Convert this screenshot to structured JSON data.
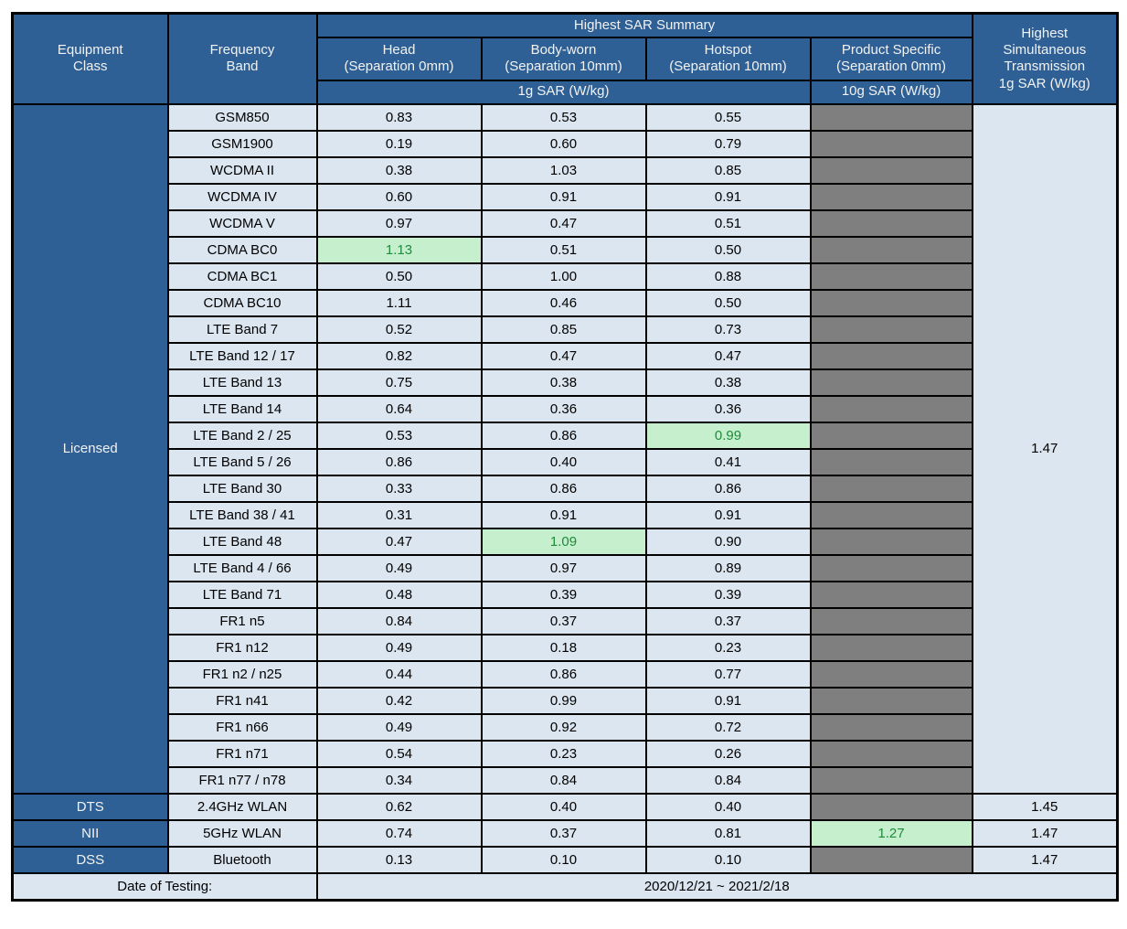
{
  "colors": {
    "header_blue": "#2E6095",
    "cell_light_blue": "#DCE6F1",
    "blank_grey": "#7F7F7F",
    "highlight_green_bg": "#C6EFCE",
    "highlight_green_text": "#1F8B3C",
    "border": "#000000"
  },
  "header": {
    "equipment_class": {
      "l1": "Equipment",
      "l2": "Class"
    },
    "frequency_band": {
      "l1": "Frequency",
      "l2": "Band"
    },
    "sar_summary": "Highest SAR Summary",
    "columns": [
      {
        "l1": "Head",
        "l2": "(Separation 0mm)"
      },
      {
        "l1": "Body-worn",
        "l2": "(Separation 10mm)"
      },
      {
        "l1": "Hotspot",
        "l2": "(Separation 10mm)"
      },
      {
        "l1": "Product Specific",
        "l2": "(Separation 0mm)"
      }
    ],
    "sar_1g": "1g SAR (W/kg)",
    "sar_10g": "10g SAR (W/kg)",
    "simultaneous": {
      "l1": "Highest",
      "l2": "Simultaneous",
      "l3": "Transmission",
      "l4": "1g SAR (W/kg)"
    }
  },
  "body": {
    "licensed": {
      "label": "Licensed",
      "sim_value": "1.47",
      "rows": [
        {
          "band": "GSM850",
          "head": "0.83",
          "body_worn": "0.53",
          "hotspot": "0.55",
          "highlight": null
        },
        {
          "band": "GSM1900",
          "head": "0.19",
          "body_worn": "0.60",
          "hotspot": "0.79",
          "highlight": null
        },
        {
          "band": "WCDMA II",
          "head": "0.38",
          "body_worn": "1.03",
          "hotspot": "0.85",
          "highlight": null
        },
        {
          "band": "WCDMA IV",
          "head": "0.60",
          "body_worn": "0.91",
          "hotspot": "0.91",
          "highlight": null
        },
        {
          "band": "WCDMA V",
          "head": "0.97",
          "body_worn": "0.47",
          "hotspot": "0.51",
          "highlight": null
        },
        {
          "band": "CDMA BC0",
          "head": "1.13",
          "body_worn": "0.51",
          "hotspot": "0.50",
          "highlight": "head"
        },
        {
          "band": "CDMA BC1",
          "head": "0.50",
          "body_worn": "1.00",
          "hotspot": "0.88",
          "highlight": null
        },
        {
          "band": "CDMA BC10",
          "head": "1.11",
          "body_worn": "0.46",
          "hotspot": "0.50",
          "highlight": null
        },
        {
          "band": "LTE Band 7",
          "head": "0.52",
          "body_worn": "0.85",
          "hotspot": "0.73",
          "highlight": null
        },
        {
          "band": "LTE Band 12 / 17",
          "head": "0.82",
          "body_worn": "0.47",
          "hotspot": "0.47",
          "highlight": null
        },
        {
          "band": "LTE Band 13",
          "head": "0.75",
          "body_worn": "0.38",
          "hotspot": "0.38",
          "highlight": null
        },
        {
          "band": "LTE Band 14",
          "head": "0.64",
          "body_worn": "0.36",
          "hotspot": "0.36",
          "highlight": null
        },
        {
          "band": "LTE Band 2 / 25",
          "head": "0.53",
          "body_worn": "0.86",
          "hotspot": "0.99",
          "highlight": "hotspot"
        },
        {
          "band": "LTE Band 5 / 26",
          "head": "0.86",
          "body_worn": "0.40",
          "hotspot": "0.41",
          "highlight": null
        },
        {
          "band": "LTE Band 30",
          "head": "0.33",
          "body_worn": "0.86",
          "hotspot": "0.86",
          "highlight": null
        },
        {
          "band": "LTE Band 38 / 41",
          "head": "0.31",
          "body_worn": "0.91",
          "hotspot": "0.91",
          "highlight": null
        },
        {
          "band": "LTE Band 48",
          "head": "0.47",
          "body_worn": "1.09",
          "hotspot": "0.90",
          "highlight": "body_worn"
        },
        {
          "band": "LTE Band 4 / 66",
          "head": "0.49",
          "body_worn": "0.97",
          "hotspot": "0.89",
          "highlight": null
        },
        {
          "band": "LTE Band 71",
          "head": "0.48",
          "body_worn": "0.39",
          "hotspot": "0.39",
          "highlight": null
        },
        {
          "band": "FR1 n5",
          "head": "0.84",
          "body_worn": "0.37",
          "hotspot": "0.37",
          "highlight": null
        },
        {
          "band": "FR1 n12",
          "head": "0.49",
          "body_worn": "0.18",
          "hotspot": "0.23",
          "highlight": null
        },
        {
          "band": "FR1 n2 / n25",
          "head": "0.44",
          "body_worn": "0.86",
          "hotspot": "0.77",
          "highlight": null
        },
        {
          "band": "FR1 n41",
          "head": "0.42",
          "body_worn": "0.99",
          "hotspot": "0.91",
          "highlight": null
        },
        {
          "band": "FR1 n66",
          "head": "0.49",
          "body_worn": "0.92",
          "hotspot": "0.72",
          "highlight": null
        },
        {
          "band": "FR1 n71",
          "head": "0.54",
          "body_worn": "0.23",
          "hotspot": "0.26",
          "highlight": null
        },
        {
          "band": "FR1 n77 / n78",
          "head": "0.34",
          "body_worn": "0.84",
          "hotspot": "0.84",
          "highlight": null
        }
      ]
    },
    "groups": [
      {
        "class": "DTS",
        "band": "2.4GHz WLAN",
        "head": "0.62",
        "body_worn": "0.40",
        "hotspot": "0.40",
        "product": "",
        "sim": "1.45"
      },
      {
        "class": "NII",
        "band": "5GHz WLAN",
        "head": "0.74",
        "body_worn": "0.37",
        "hotspot": "0.81",
        "product": "1.27",
        "sim": "1.47"
      },
      {
        "class": "DSS",
        "band": "Bluetooth",
        "head": "0.13",
        "body_worn": "0.10",
        "hotspot": "0.10",
        "product": "",
        "sim": "1.47"
      }
    ],
    "footer": {
      "label": "Date of Testing:",
      "value": "2020/12/21 ~ 2021/2/18"
    }
  }
}
